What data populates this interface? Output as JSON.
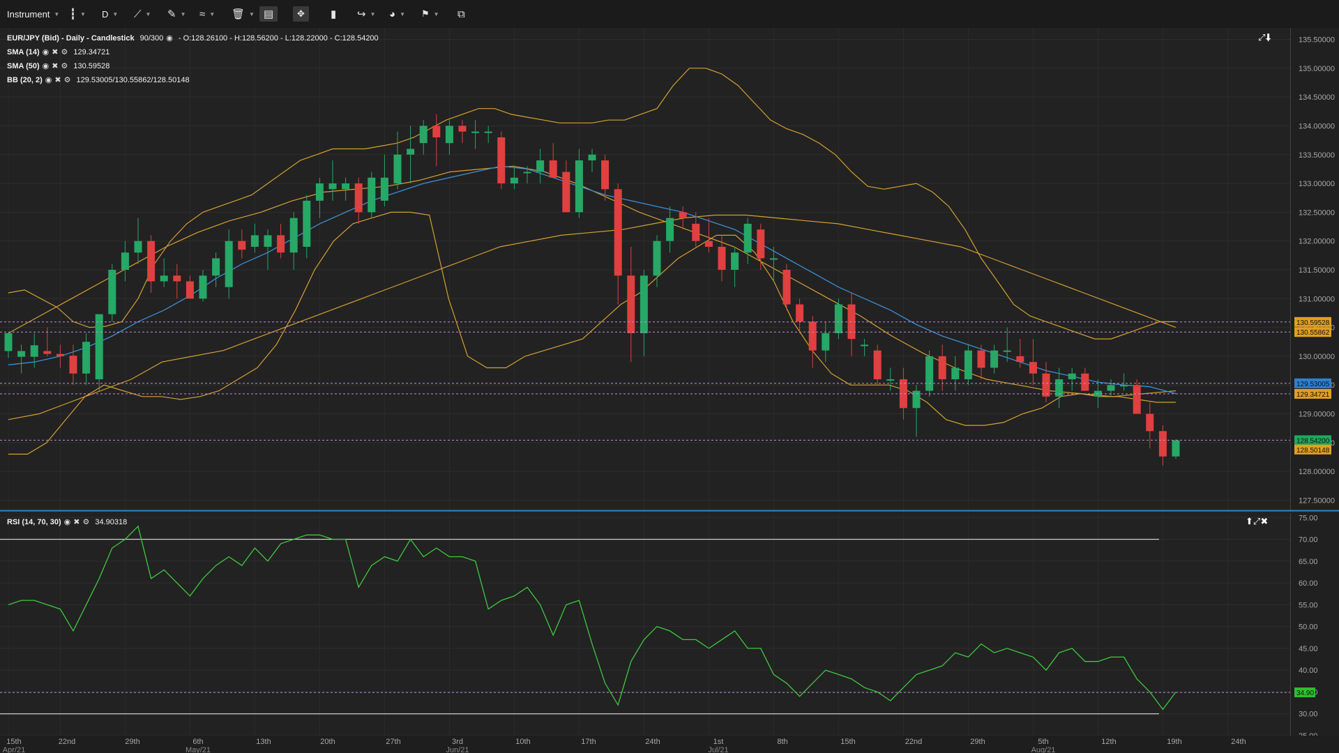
{
  "toolbar": {
    "instrument_label": "Instrument",
    "timeframe_label": "D"
  },
  "legend": {
    "title": "EUR/JPY (Bid) - Daily - Candlestick",
    "count": "90/300",
    "ohlc": "- O:128.26100 - H:128.56200 - L:128.22000 - C:128.54200",
    "sma14_label": "SMA (14)",
    "sma14_value": "129.34721",
    "sma50_label": "SMA (50)",
    "sma50_value": "130.59528",
    "bb_label": "BB (20, 2)",
    "bb_value": "129.53005/130.55862/128.50148",
    "rsi_label": "RSI (14, 70, 30)",
    "rsi_value": "34.90318"
  },
  "colors": {
    "bullish": "#26a866",
    "bearish": "#e04040",
    "sma_short": "#3a8fd8",
    "bands": "#d6a032",
    "rsi": "#3ec83e"
  },
  "chart_data": [
    {
      "type": "candlestick",
      "title": "EUR/JPY (Bid) - Daily - Candlestick",
      "ylim": [
        127.3,
        135.7
      ],
      "yticks": [
        "135.50000",
        "135.00000",
        "134.50000",
        "134.00000",
        "133.50000",
        "133.00000",
        "132.50000",
        "132.00000",
        "131.50000",
        "131.00000",
        "130.50000",
        "130.00000",
        "129.50000",
        "129.00000",
        "128.50000",
        "128.00000",
        "127.50000"
      ],
      "price_tags": [
        {
          "value": "130.59528",
          "y": 130.595,
          "color": "#e0a020"
        },
        {
          "value": "130.55862",
          "y": 130.42,
          "color": "#e0a020"
        },
        {
          "value": "129.53005",
          "y": 129.53,
          "color": "#2f7fd0"
        },
        {
          "value": "129.34721",
          "y": 129.347,
          "color": "#e0a020"
        },
        {
          "value": "128.54200",
          "y": 128.542,
          "color": "#1fa860"
        },
        {
          "value": "128.50148",
          "y": 128.38,
          "color": "#e0a020"
        }
      ],
      "candles": [
        {
          "o": 130.09,
          "h": 130.36,
          "l": 129.97,
          "c": 130.4
        },
        {
          "o": 129.99,
          "h": 130.2,
          "l": 129.7,
          "c": 130.09
        },
        {
          "o": 129.99,
          "h": 130.4,
          "l": 129.8,
          "c": 130.19
        },
        {
          "o": 130.09,
          "h": 130.5,
          "l": 130.0,
          "c": 130.04
        },
        {
          "o": 130.04,
          "h": 130.2,
          "l": 129.8,
          "c": 130.0
        },
        {
          "o": 130.01,
          "h": 130.2,
          "l": 129.5,
          "c": 129.7
        },
        {
          "o": 129.7,
          "h": 130.4,
          "l": 129.5,
          "c": 130.25
        },
        {
          "o": 129.6,
          "h": 130.7,
          "l": 129.4,
          "c": 130.73
        },
        {
          "o": 130.73,
          "h": 131.6,
          "l": 130.6,
          "c": 131.5
        },
        {
          "o": 131.5,
          "h": 132.0,
          "l": 131.3,
          "c": 131.8
        },
        {
          "o": 131.8,
          "h": 132.4,
          "l": 131.6,
          "c": 132.0
        },
        {
          "o": 132.0,
          "h": 132.1,
          "l": 131.1,
          "c": 131.3
        },
        {
          "o": 131.3,
          "h": 131.7,
          "l": 131.2,
          "c": 131.4
        },
        {
          "o": 131.4,
          "h": 131.6,
          "l": 131.0,
          "c": 131.3
        },
        {
          "o": 131.3,
          "h": 131.4,
          "l": 131.0,
          "c": 131.0
        },
        {
          "o": 131.0,
          "h": 131.5,
          "l": 130.95,
          "c": 131.4
        },
        {
          "o": 131.4,
          "h": 131.8,
          "l": 131.2,
          "c": 131.7
        },
        {
          "o": 131.2,
          "h": 132.2,
          "l": 131.0,
          "c": 132.0
        },
        {
          "o": 132.0,
          "h": 132.2,
          "l": 131.7,
          "c": 131.85
        },
        {
          "o": 131.9,
          "h": 132.3,
          "l": 131.8,
          "c": 132.1
        },
        {
          "o": 131.9,
          "h": 132.2,
          "l": 131.5,
          "c": 132.1
        },
        {
          "o": 132.1,
          "h": 132.3,
          "l": 131.7,
          "c": 131.8
        },
        {
          "o": 131.8,
          "h": 132.5,
          "l": 131.5,
          "c": 132.4
        },
        {
          "o": 131.9,
          "h": 132.8,
          "l": 131.7,
          "c": 132.7
        },
        {
          "o": 132.7,
          "h": 133.1,
          "l": 132.4,
          "c": 133.0
        },
        {
          "o": 132.9,
          "h": 133.4,
          "l": 132.7,
          "c": 133.0
        },
        {
          "o": 132.9,
          "h": 133.1,
          "l": 132.7,
          "c": 133.0
        },
        {
          "o": 133.0,
          "h": 133.1,
          "l": 132.3,
          "c": 132.5
        },
        {
          "o": 132.5,
          "h": 133.2,
          "l": 132.4,
          "c": 133.1
        },
        {
          "o": 132.7,
          "h": 133.5,
          "l": 132.6,
          "c": 133.1
        },
        {
          "o": 133.0,
          "h": 133.9,
          "l": 132.9,
          "c": 133.5
        },
        {
          "o": 133.5,
          "h": 134.0,
          "l": 133.0,
          "c": 133.6
        },
        {
          "o": 133.7,
          "h": 134.1,
          "l": 133.5,
          "c": 134.0
        },
        {
          "o": 134.0,
          "h": 134.2,
          "l": 133.3,
          "c": 133.8
        },
        {
          "o": 133.7,
          "h": 134.1,
          "l": 133.5,
          "c": 134.0
        },
        {
          "o": 134.0,
          "h": 134.1,
          "l": 133.7,
          "c": 133.9
        },
        {
          "o": 133.9,
          "h": 134.1,
          "l": 133.6,
          "c": 133.9
        },
        {
          "o": 133.9,
          "h": 134.0,
          "l": 133.7,
          "c": 133.9
        },
        {
          "o": 133.8,
          "h": 133.9,
          "l": 132.9,
          "c": 133.0
        },
        {
          "o": 133.0,
          "h": 133.3,
          "l": 132.9,
          "c": 133.1
        },
        {
          "o": 133.2,
          "h": 133.3,
          "l": 133.0,
          "c": 133.2
        },
        {
          "o": 133.2,
          "h": 133.6,
          "l": 133.0,
          "c": 133.4
        },
        {
          "o": 133.4,
          "h": 133.7,
          "l": 133.1,
          "c": 133.1
        },
        {
          "o": 133.2,
          "h": 133.4,
          "l": 132.5,
          "c": 132.5
        },
        {
          "o": 132.5,
          "h": 133.6,
          "l": 132.4,
          "c": 133.4
        },
        {
          "o": 133.4,
          "h": 133.6,
          "l": 133.2,
          "c": 133.5
        },
        {
          "o": 133.4,
          "h": 133.5,
          "l": 132.7,
          "c": 132.9
        },
        {
          "o": 132.9,
          "h": 133.0,
          "l": 130.9,
          "c": 131.4
        },
        {
          "o": 131.4,
          "h": 131.9,
          "l": 129.9,
          "c": 130.4
        },
        {
          "o": 130.4,
          "h": 131.5,
          "l": 130.0,
          "c": 131.4
        },
        {
          "o": 131.4,
          "h": 132.1,
          "l": 131.2,
          "c": 132.0
        },
        {
          "o": 132.0,
          "h": 132.6,
          "l": 131.8,
          "c": 132.4
        },
        {
          "o": 132.5,
          "h": 132.6,
          "l": 132.2,
          "c": 132.4
        },
        {
          "o": 132.3,
          "h": 132.5,
          "l": 131.9,
          "c": 132.0
        },
        {
          "o": 132.0,
          "h": 132.4,
          "l": 131.8,
          "c": 131.9
        },
        {
          "o": 131.9,
          "h": 132.1,
          "l": 131.3,
          "c": 131.5
        },
        {
          "o": 131.5,
          "h": 131.9,
          "l": 131.2,
          "c": 131.8
        },
        {
          "o": 131.8,
          "h": 132.4,
          "l": 131.6,
          "c": 132.3
        },
        {
          "o": 132.2,
          "h": 132.3,
          "l": 131.5,
          "c": 131.7
        },
        {
          "o": 131.7,
          "h": 131.9,
          "l": 131.3,
          "c": 131.7
        },
        {
          "o": 131.5,
          "h": 131.6,
          "l": 130.8,
          "c": 130.9
        },
        {
          "o": 130.9,
          "h": 131.0,
          "l": 130.4,
          "c": 130.6
        },
        {
          "o": 130.6,
          "h": 130.7,
          "l": 129.8,
          "c": 130.1
        },
        {
          "o": 130.1,
          "h": 130.6,
          "l": 129.9,
          "c": 130.4
        },
        {
          "o": 130.4,
          "h": 131.0,
          "l": 130.3,
          "c": 130.9
        },
        {
          "o": 130.9,
          "h": 131.1,
          "l": 130.0,
          "c": 130.3
        },
        {
          "o": 130.2,
          "h": 130.3,
          "l": 130.0,
          "c": 130.2
        },
        {
          "o": 130.1,
          "h": 130.2,
          "l": 129.5,
          "c": 129.6
        },
        {
          "o": 129.6,
          "h": 129.8,
          "l": 129.4,
          "c": 129.6
        },
        {
          "o": 129.6,
          "h": 129.8,
          "l": 128.9,
          "c": 129.1
        },
        {
          "o": 129.1,
          "h": 129.5,
          "l": 128.6,
          "c": 129.4
        },
        {
          "o": 129.4,
          "h": 130.1,
          "l": 129.3,
          "c": 130.0
        },
        {
          "o": 130.0,
          "h": 130.2,
          "l": 129.4,
          "c": 129.6
        },
        {
          "o": 129.6,
          "h": 130.0,
          "l": 129.4,
          "c": 129.8
        },
        {
          "o": 129.6,
          "h": 130.2,
          "l": 129.5,
          "c": 130.1
        },
        {
          "o": 130.1,
          "h": 130.2,
          "l": 129.6,
          "c": 129.8
        },
        {
          "o": 129.8,
          "h": 130.2,
          "l": 129.7,
          "c": 130.1
        },
        {
          "o": 130.1,
          "h": 130.5,
          "l": 129.9,
          "c": 130.1
        },
        {
          "o": 130.0,
          "h": 130.3,
          "l": 129.8,
          "c": 129.9
        },
        {
          "o": 129.9,
          "h": 130.3,
          "l": 129.5,
          "c": 129.7
        },
        {
          "o": 129.7,
          "h": 129.9,
          "l": 129.2,
          "c": 129.3
        },
        {
          "o": 129.3,
          "h": 129.8,
          "l": 129.1,
          "c": 129.6
        },
        {
          "o": 129.6,
          "h": 129.8,
          "l": 129.4,
          "c": 129.7
        },
        {
          "o": 129.7,
          "h": 129.8,
          "l": 129.4,
          "c": 129.4
        },
        {
          "o": 129.3,
          "h": 129.6,
          "l": 129.1,
          "c": 129.4
        },
        {
          "o": 129.4,
          "h": 129.6,
          "l": 129.3,
          "c": 129.5
        },
        {
          "o": 129.5,
          "h": 129.7,
          "l": 129.4,
          "c": 129.5
        },
        {
          "o": 129.5,
          "h": 129.6,
          "l": 129.0,
          "c": 129.0
        },
        {
          "o": 129.0,
          "h": 129.2,
          "l": 128.4,
          "c": 128.7
        },
        {
          "o": 128.7,
          "h": 128.8,
          "l": 128.1,
          "c": 128.26
        },
        {
          "o": 128.26,
          "h": 128.56,
          "l": 128.22,
          "c": 128.54
        }
      ],
      "bb_upper": [
        131.1,
        131.15,
        131.0,
        130.85,
        130.6,
        130.5,
        130.52,
        130.6,
        131.0,
        131.6,
        132.0,
        132.3,
        132.5,
        132.6,
        132.7,
        132.8,
        133.0,
        133.2,
        133.4,
        133.5,
        133.6,
        133.6,
        133.6,
        133.65,
        133.7,
        133.8,
        133.95,
        134.1,
        134.2,
        134.3,
        134.3,
        134.2,
        134.15,
        134.1,
        134.05,
        134.05,
        134.05,
        134.1,
        134.1,
        134.2,
        134.3,
        134.7,
        135.0,
        135.0,
        134.9,
        134.7,
        134.4,
        134.1,
        133.95,
        133.85,
        133.7,
        133.5,
        133.2,
        132.95,
        132.9,
        132.95,
        133.0,
        132.85,
        132.6,
        132.2,
        131.7,
        131.3,
        130.9,
        130.7,
        130.6,
        130.5,
        130.4,
        130.3,
        130.3,
        130.4,
        130.5,
        130.6,
        130.6
      ],
      "bb_lower": [
        128.3,
        128.3,
        128.5,
        128.9,
        129.3,
        129.5,
        129.4,
        129.3,
        129.3,
        129.25,
        129.3,
        129.4,
        129.6,
        129.8,
        130.2,
        130.8,
        131.5,
        132.0,
        132.3,
        132.4,
        132.5,
        132.5,
        132.45,
        131.0,
        130.0,
        129.8,
        129.8,
        130.0,
        130.1,
        130.2,
        130.3,
        130.6,
        130.9,
        131.1,
        131.4,
        131.7,
        131.9,
        132.1,
        132.1,
        131.8,
        131.3,
        130.6,
        130.1,
        129.7,
        129.5,
        129.5,
        129.5,
        129.4,
        129.2,
        128.9,
        128.8,
        128.8,
        128.85,
        129.0,
        129.1,
        129.3,
        129.35,
        129.3,
        129.3,
        129.25,
        129.2,
        129.2
      ],
      "bb_middle": [
        128.9,
        129.0,
        129.2,
        129.4,
        129.6,
        129.9,
        130.0,
        130.1,
        130.3,
        130.5,
        130.7,
        130.9,
        131.1,
        131.3,
        131.5,
        131.7,
        131.9,
        132.0,
        132.1,
        132.15,
        132.2,
        132.3,
        132.4,
        132.45,
        132.45,
        132.4,
        132.35,
        132.3,
        132.2,
        132.1,
        132.0,
        131.9,
        131.7,
        131.5,
        131.3,
        131.1,
        130.9,
        130.7,
        130.5
      ],
      "sma14": [
        129.85,
        129.9,
        130.0,
        130.15,
        130.35,
        130.6,
        130.8,
        131.05,
        131.35,
        131.6,
        131.8,
        132.05,
        132.3,
        132.5,
        132.7,
        132.85,
        133.0,
        133.1,
        133.2,
        133.3,
        133.25,
        133.1,
        132.95,
        132.8,
        132.7,
        132.6,
        132.5,
        132.35,
        132.2,
        131.95,
        131.7,
        131.45,
        131.2,
        131.0,
        130.8,
        130.55,
        130.35,
        130.2,
        130.05,
        129.9,
        129.75,
        129.65,
        129.55,
        129.5,
        129.47,
        129.35
      ],
      "sma50": [
        130.4,
        130.7,
        131.0,
        131.3,
        131.6,
        131.9,
        132.15,
        132.35,
        132.5,
        132.7,
        132.85,
        132.9,
        132.95,
        133.05,
        133.2,
        133.25,
        133.3,
        133.2,
        133.0,
        132.75,
        132.5,
        132.3,
        132.1,
        131.9,
        131.6,
        131.3,
        131.0,
        130.7,
        130.35,
        130.05,
        129.8,
        129.6,
        129.5,
        129.4,
        129.35,
        129.3,
        129.35,
        129.4
      ]
    },
    {
      "type": "line",
      "title": "RSI (14, 70, 30)",
      "ylim": [
        25,
        76
      ],
      "yticks": [
        "75.00",
        "70.00",
        "65.00",
        "60.00",
        "55.00",
        "50.00",
        "45.00",
        "40.00",
        "35.00",
        "30.00",
        "25.00"
      ],
      "levels": [
        70,
        30
      ],
      "last_tag": "34.90",
      "values": [
        55,
        56,
        56,
        55,
        54,
        49,
        55,
        61,
        68,
        70,
        73,
        61,
        63,
        60,
        57,
        61,
        64,
        66,
        64,
        68,
        65,
        69,
        70,
        71,
        71,
        70,
        70,
        59,
        64,
        66,
        65,
        70,
        66,
        68,
        66,
        66,
        65,
        54,
        56,
        57,
        59,
        55,
        48,
        55,
        56,
        46,
        37,
        32,
        42,
        47,
        50,
        49,
        47,
        47,
        45,
        47,
        49,
        45,
        45,
        39,
        37,
        34,
        37,
        40,
        39,
        38,
        36,
        35,
        33,
        36,
        39,
        40,
        41,
        44,
        43,
        46,
        44,
        45,
        44,
        43,
        40,
        44,
        45,
        42,
        42,
        43,
        43,
        38,
        35,
        31,
        35
      ]
    }
  ],
  "xaxis": {
    "ticks": [
      "15th",
      "22nd",
      "29th",
      "6th",
      "13th",
      "20th",
      "27th",
      "3rd",
      "10th",
      "17th",
      "24th",
      "1st",
      "8th",
      "15th",
      "22nd",
      "29th",
      "5th",
      "12th",
      "19th",
      "24th"
    ],
    "months": [
      "Apr/21",
      "May/21",
      "Jun/21",
      "Jul/21",
      "Aug/21"
    ]
  }
}
